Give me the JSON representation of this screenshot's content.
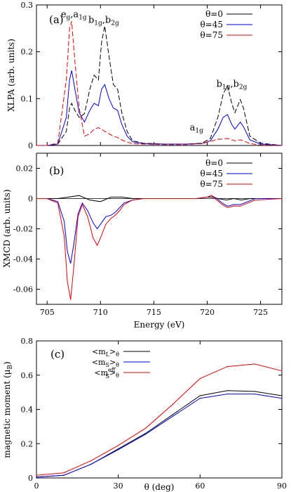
{
  "chart_data": [
    {
      "type": "line",
      "panel_label": "(a)",
      "ylabel": "XLPA (arb. units)",
      "xlim": [
        704,
        727
      ],
      "ylim": [
        0,
        0.3
      ],
      "xticks": [
        705,
        710,
        715,
        720,
        725
      ],
      "yticks": [
        0,
        0.1,
        0.2,
        0.3
      ],
      "ytick_labels": [
        "0",
        "0.1",
        "0.2",
        "0.3"
      ],
      "annotations": [
        {
          "base": "e",
          "sub": "g",
          "base2": ",a",
          "sub2": "1g",
          "x": 707.5,
          "y": 0.274
        },
        {
          "base": "b",
          "sub": "1g",
          "base2": ",b",
          "sub2": "2g",
          "x": 710.3,
          "y": 0.262
        },
        {
          "base": "a",
          "sub": "1g",
          "base2": "",
          "sub2": "",
          "x": 719.0,
          "y": 0.032
        },
        {
          "base": "b",
          "sub": "1g",
          "base2": ",b",
          "sub2": "2g",
          "x": 722.3,
          "y": 0.125
        }
      ],
      "series": [
        {
          "name": "θ=0",
          "color": "#000000",
          "dash": "7,3",
          "x": [
            704,
            705,
            706,
            706.8,
            707.1,
            707.3,
            707.6,
            708,
            708.5,
            709,
            709.4,
            709.8,
            710.1,
            710.4,
            710.8,
            711.2,
            711.6,
            712,
            712.5,
            713,
            714,
            716,
            718,
            719.5,
            720.3,
            721,
            721.5,
            721.9,
            722.3,
            722.6,
            723.1,
            723.4,
            724,
            725,
            727
          ],
          "y": [
            0,
            0,
            0.003,
            0.03,
            0.08,
            0.09,
            0.075,
            0.06,
            0.068,
            0.12,
            0.15,
            0.14,
            0.22,
            0.255,
            0.19,
            0.13,
            0.12,
            0.07,
            0.03,
            0.01,
            0.005,
            0.003,
            0.003,
            0.005,
            0.015,
            0.06,
            0.11,
            0.128,
            0.09,
            0.07,
            0.098,
            0.08,
            0.02,
            0.005,
            0
          ]
        },
        {
          "name": "θ=45",
          "color": "#0000ee",
          "dash": "",
          "x": [
            704,
            705,
            706,
            706.8,
            707.1,
            707.3,
            707.6,
            708,
            708.5,
            709,
            709.4,
            709.8,
            710.1,
            710.4,
            710.8,
            711.2,
            711.6,
            712,
            712.5,
            713,
            714,
            716,
            718,
            719.5,
            720.3,
            721,
            721.5,
            721.9,
            722.3,
            722.6,
            723.1,
            723.4,
            724,
            725,
            727
          ],
          "y": [
            0,
            0,
            0.003,
            0.06,
            0.14,
            0.16,
            0.12,
            0.07,
            0.05,
            0.075,
            0.09,
            0.085,
            0.12,
            0.13,
            0.1,
            0.08,
            0.075,
            0.045,
            0.02,
            0.008,
            0.004,
            0.003,
            0.003,
            0.004,
            0.01,
            0.035,
            0.06,
            0.066,
            0.045,
            0.035,
            0.05,
            0.04,
            0.012,
            0.003,
            0
          ]
        },
        {
          "name": "θ=75",
          "color": "#ee0000",
          "dash": "7,3",
          "x": [
            704,
            705,
            706,
            706.8,
            707.1,
            707.3,
            707.6,
            708,
            708.5,
            709,
            709.4,
            709.8,
            710.1,
            710.4,
            710.8,
            711.2,
            711.6,
            712,
            712.5,
            713,
            714,
            716,
            718,
            719.5,
            720.3,
            721,
            721.5,
            721.9,
            722.3,
            722.6,
            723.1,
            723.4,
            724,
            725,
            727
          ],
          "y": [
            0,
            0,
            0.005,
            0.14,
            0.25,
            0.265,
            0.18,
            0.08,
            0.02,
            0.025,
            0.035,
            0.038,
            0.035,
            0.03,
            0.025,
            0.02,
            0.017,
            0.012,
            0.007,
            0.004,
            0.003,
            0.002,
            0.002,
            0.004,
            0.009,
            0.013,
            0.014,
            0.015,
            0.012,
            0.01,
            0.012,
            0.01,
            0.004,
            0.001,
            0
          ]
        }
      ],
      "legend": {
        "position": "top-right"
      }
    },
    {
      "type": "line",
      "panel_label": "(b)",
      "ylabel": "XMCD (arb. units)",
      "xlabel": "Energy (eV)",
      "xlim": [
        704,
        727
      ],
      "ylim": [
        -0.07,
        0.03
      ],
      "xticks": [
        705,
        710,
        715,
        720,
        725
      ],
      "xtick_labels": [
        "705",
        "710",
        "715",
        "720",
        "725"
      ],
      "yticks": [
        -0.06,
        -0.04,
        -0.02,
        0,
        0.02
      ],
      "ytick_labels": [
        "-0.06",
        "-0.04",
        "-0.02",
        "0",
        "0.02"
      ],
      "series": [
        {
          "name": "θ=0",
          "color": "#000000",
          "dash": "",
          "x": [
            704,
            706,
            707,
            708,
            709,
            710,
            711,
            712,
            713,
            715,
            719,
            720,
            720.4,
            721,
            721.8,
            722.5,
            723.2,
            724,
            727
          ],
          "y": [
            0,
            0,
            0.001,
            0.002,
            -0.001,
            -0.002,
            0.001,
            0.001,
            0,
            0,
            0,
            0.001,
            0.001,
            0,
            -0.001,
            0,
            -0.001,
            0,
            0
          ]
        },
        {
          "name": "θ=45",
          "color": "#0000ee",
          "dash": "",
          "x": [
            704,
            705,
            706,
            706.6,
            706.9,
            707.2,
            707.5,
            707.9,
            708.3,
            708.8,
            709.3,
            709.7,
            710,
            710.5,
            711,
            711.4,
            711.8,
            712.2,
            713,
            714,
            716,
            719,
            720,
            720.4,
            720.9,
            721.4,
            721.9,
            722.5,
            723.1,
            723.8,
            724.5,
            727
          ],
          "y": [
            0,
            0,
            -0.002,
            -0.015,
            -0.035,
            -0.043,
            -0.03,
            -0.01,
            -0.003,
            -0.008,
            -0.016,
            -0.02,
            -0.017,
            -0.012,
            -0.011,
            -0.009,
            -0.006,
            -0.003,
            -0.001,
            0,
            0,
            0,
            0.001,
            0.002,
            0,
            -0.003,
            -0.005,
            -0.004,
            -0.004,
            -0.002,
            0,
            0
          ]
        },
        {
          "name": "θ=75",
          "color": "#ee0000",
          "dash": "",
          "x": [
            704,
            705,
            706,
            706.6,
            706.9,
            707.2,
            707.5,
            707.9,
            708.3,
            708.8,
            709.3,
            709.7,
            710,
            710.5,
            711,
            711.4,
            711.8,
            712.2,
            713,
            714,
            716,
            719,
            720,
            720.4,
            720.9,
            721.4,
            721.9,
            722.5,
            723.1,
            723.8,
            724.5,
            727
          ],
          "y": [
            0,
            0,
            -0.003,
            -0.025,
            -0.055,
            -0.067,
            -0.045,
            -0.012,
            -0.004,
            -0.012,
            -0.026,
            -0.031,
            -0.026,
            -0.017,
            -0.013,
            -0.011,
            -0.008,
            -0.004,
            -0.001,
            0,
            0,
            0,
            0.001,
            0.002,
            -0.001,
            -0.004,
            -0.006,
            -0.005,
            -0.005,
            -0.003,
            -0.001,
            0
          ]
        }
      ],
      "legend": {
        "position": "top-right"
      }
    },
    {
      "type": "line",
      "panel_label": "(c)",
      "ylabel": "magnetic moment (μ",
      "ylabel_sub": "B",
      "ylabel_end": ")",
      "xlabel": "θ (deg)",
      "xlim": [
        0,
        90
      ],
      "ylim": [
        0,
        0.8
      ],
      "xticks": [
        0,
        30,
        60,
        90
      ],
      "xtick_labels": [
        "0",
        "30",
        "60",
        "90"
      ],
      "yticks": [
        0,
        0.2,
        0.4,
        0.6,
        0.8
      ],
      "ytick_labels": [
        "0",
        "0.2",
        "0.4",
        "0.6",
        "0.8"
      ],
      "series": [
        {
          "name": "<m_L>_θ",
          "label_base": "<m",
          "label_sub": "L",
          "label_sup": "",
          "label_end": ">",
          "label_endsub": "θ",
          "color": "#000000",
          "x": [
            0,
            10,
            20,
            30,
            40,
            50,
            60,
            70,
            80,
            90
          ],
          "y": [
            0.005,
            0.015,
            0.08,
            0.17,
            0.26,
            0.37,
            0.48,
            0.51,
            0.505,
            0.48
          ]
        },
        {
          "name": "<m_S>_θ",
          "label_base": "<m",
          "label_sub": "S",
          "label_sup": "",
          "label_end": ">",
          "label_endsub": "θ",
          "color": "#0000ee",
          "x": [
            0,
            10,
            20,
            30,
            40,
            50,
            60,
            70,
            80,
            90
          ],
          "y": [
            0.005,
            0.015,
            0.08,
            0.165,
            0.255,
            0.36,
            0.465,
            0.49,
            0.49,
            0.465
          ]
        },
        {
          "name": "<m^eff_S>_θ",
          "label_base": "<m",
          "label_sub": "S",
          "label_sup": "eff",
          "label_end": ">",
          "label_endsub": "θ",
          "color": "#ee0000",
          "x": [
            0,
            10,
            20,
            30,
            40,
            50,
            60,
            70,
            80,
            90
          ],
          "y": [
            0.015,
            0.03,
            0.1,
            0.19,
            0.29,
            0.43,
            0.58,
            0.65,
            0.665,
            0.625
          ]
        }
      ],
      "legend": {
        "position": "top-left"
      }
    }
  ]
}
